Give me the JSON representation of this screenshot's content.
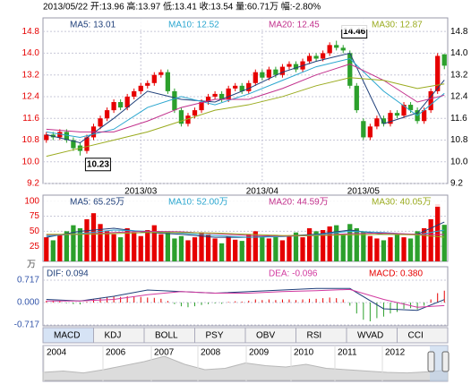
{
  "header": "2013/05/22 开:13.96 高:13.97 低:13.41 收:13.54 量:60.71万 幅:-2.80%",
  "chart_data": [
    {
      "type": "candlestick",
      "open": [
        10.8,
        11.0,
        10.9,
        11.1,
        10.8,
        10.6,
        10.4,
        10.9,
        11.3,
        11.6,
        11.9,
        12.2,
        12.0,
        12.4,
        12.6,
        12.8,
        12.9,
        13.2,
        13.3,
        12.6,
        11.9,
        11.4,
        11.7,
        11.9,
        12.2,
        12.4,
        12.5,
        12.3,
        12.7,
        12.8,
        12.6,
        12.9,
        13.3,
        13.1,
        13.4,
        13.2,
        13.5,
        13.6,
        13.4,
        13.7,
        13.9,
        13.8,
        14.0,
        14.3,
        14.2,
        14.0,
        12.8,
        11.5,
        10.9,
        11.3,
        11.6,
        11.4,
        11.8,
        11.7,
        12.1,
        11.9,
        11.5,
        11.9,
        12.6,
        13.96
      ],
      "high": [
        11.1,
        11.1,
        11.2,
        11.2,
        10.9,
        10.7,
        11.0,
        11.4,
        11.7,
        12.0,
        12.3,
        12.3,
        12.5,
        12.7,
        12.9,
        13.0,
        13.3,
        13.4,
        13.4,
        12.7,
        12.0,
        11.8,
        12.0,
        12.3,
        12.5,
        12.6,
        12.6,
        12.8,
        12.9,
        12.9,
        13.0,
        13.4,
        13.4,
        13.5,
        13.5,
        13.6,
        13.7,
        13.7,
        13.8,
        14.0,
        14.0,
        14.1,
        14.4,
        14.46,
        14.3,
        14.1,
        12.9,
        11.6,
        11.4,
        11.7,
        11.7,
        11.9,
        11.9,
        12.2,
        12.2,
        12.0,
        12.0,
        12.7,
        14.0,
        13.97
      ],
      "low": [
        10.7,
        10.8,
        10.8,
        10.7,
        10.4,
        10.23,
        10.3,
        10.8,
        11.2,
        11.5,
        11.8,
        11.9,
        11.9,
        12.3,
        12.5,
        12.7,
        12.8,
        13.1,
        12.5,
        11.8,
        11.3,
        11.3,
        11.6,
        11.8,
        12.1,
        12.3,
        12.2,
        12.2,
        12.6,
        12.5,
        12.5,
        12.8,
        13.0,
        13.0,
        13.1,
        13.1,
        13.4,
        13.3,
        13.3,
        13.6,
        13.7,
        13.7,
        13.9,
        14.1,
        14.0,
        12.7,
        11.8,
        10.8,
        10.8,
        11.2,
        11.3,
        11.3,
        11.6,
        11.6,
        11.8,
        11.4,
        11.4,
        11.8,
        12.5,
        13.41
      ],
      "close": [
        11.0,
        10.9,
        11.1,
        10.8,
        10.5,
        10.4,
        10.9,
        11.3,
        11.6,
        11.9,
        12.2,
        12.0,
        12.4,
        12.6,
        12.8,
        12.9,
        13.2,
        13.3,
        12.6,
        11.9,
        11.4,
        11.7,
        11.9,
        12.2,
        12.4,
        12.5,
        12.3,
        12.7,
        12.8,
        12.6,
        12.9,
        13.3,
        13.1,
        13.4,
        13.2,
        13.5,
        13.6,
        13.4,
        13.7,
        13.9,
        13.8,
        14.0,
        14.3,
        14.2,
        14.1,
        12.8,
        11.9,
        10.9,
        11.3,
        11.6,
        11.4,
        11.8,
        11.7,
        12.1,
        11.9,
        11.5,
        11.9,
        12.6,
        13.9,
        13.54
      ],
      "up_color": "#e60000",
      "down_color": "#2ca02c",
      "ylim": [
        9.2,
        15.3
      ],
      "yticks": [
        9.2,
        {
          "value": 10,
          "label": "10.0"
        },
        10.8,
        11.6,
        12.4,
        13.2,
        {
          "value": 14,
          "label": "14.0"
        },
        14.8
      ],
      "xticks": [
        {
          "value": 14,
          "label": "2013/03"
        },
        {
          "value": 32,
          "label": "2013/04"
        },
        {
          "value": 47,
          "label": "2013/05"
        }
      ],
      "grid": true,
      "ma_labels": [
        "MA5: 13.01",
        "MA10: 12.52",
        "MA20: 12.45",
        "MA30: 12.87"
      ],
      "series": [
        {
          "name": "MA5",
          "color": "#1f3f7a",
          "x": [
            0,
            5,
            10,
            15,
            20,
            25,
            30,
            35,
            40,
            45,
            50,
            55,
            59
          ],
          "values": [
            11.0,
            10.7,
            11.6,
            12.6,
            12.3,
            12.2,
            12.7,
            13.3,
            13.7,
            14.0,
            11.4,
            11.8,
            13.01
          ]
        },
        {
          "name": "MA10",
          "color": "#2aa6cf",
          "x": [
            0,
            5,
            10,
            15,
            20,
            25,
            30,
            35,
            40,
            45,
            50,
            55,
            59
          ],
          "values": [
            11.1,
            10.9,
            11.2,
            12.0,
            12.4,
            12.1,
            12.5,
            13.0,
            13.5,
            13.8,
            12.6,
            11.7,
            12.52
          ]
        },
        {
          "name": "MA20",
          "color": "#c2308c",
          "x": [
            0,
            5,
            10,
            15,
            20,
            25,
            30,
            35,
            40,
            45,
            50,
            55,
            59
          ],
          "values": [
            11.2,
            11.1,
            11.1,
            11.5,
            12.0,
            12.3,
            12.3,
            12.7,
            13.2,
            13.6,
            13.0,
            12.2,
            12.45
          ]
        },
        {
          "name": "MA30",
          "color": "#9aab1e",
          "x": [
            0,
            5,
            10,
            15,
            20,
            25,
            30,
            35,
            40,
            45,
            50,
            55,
            59
          ],
          "values": [
            10.2,
            10.5,
            10.8,
            11.1,
            11.5,
            11.9,
            12.1,
            12.4,
            12.8,
            13.1,
            13.0,
            12.7,
            12.87
          ]
        }
      ]
    },
    {
      "type": "bar",
      "values": [
        40,
        35,
        45,
        50,
        60,
        55,
        70,
        80,
        62,
        50,
        45,
        40,
        55,
        48,
        42,
        52,
        60,
        45,
        50,
        38,
        42,
        35,
        40,
        48,
        45,
        38,
        30,
        42,
        36,
        34,
        45,
        50,
        40,
        38,
        44,
        35,
        42,
        48,
        40,
        55,
        50,
        52,
        58,
        60,
        45,
        62,
        55,
        50,
        42,
        38,
        35,
        40,
        45,
        40,
        38,
        50,
        55,
        70,
        95,
        60.71
      ],
      "ylim": [
        0,
        110
      ],
      "yticks": [
        25,
        50,
        75,
        100
      ],
      "grid": true,
      "unit": "万",
      "ma_labels": [
        "MA5: 65.25万",
        "MA10: 52.00万",
        "MA20: 44.59万",
        "MA30: 40.05万"
      ],
      "series": [
        {
          "name": "MA5",
          "color": "#1f3f7a",
          "x": [
            0,
            5,
            10,
            15,
            20,
            25,
            30,
            35,
            40,
            45,
            50,
            55,
            59
          ],
          "values": [
            40,
            50,
            55,
            48,
            45,
            40,
            40,
            42,
            45,
            52,
            45,
            45,
            65.25
          ]
        },
        {
          "name": "MA10",
          "color": "#2aa6cf",
          "x": [
            0,
            5,
            10,
            15,
            20,
            25,
            30,
            35,
            40,
            45,
            50,
            55,
            59
          ],
          "values": [
            42,
            46,
            52,
            50,
            47,
            43,
            40,
            41,
            44,
            50,
            48,
            44,
            52
          ]
        },
        {
          "name": "MA20",
          "color": "#c2308c",
          "x": [
            0,
            5,
            10,
            15,
            20,
            25,
            30,
            35,
            40,
            45,
            50,
            55,
            59
          ],
          "values": [
            44,
            45,
            48,
            50,
            49,
            46,
            43,
            42,
            43,
            46,
            47,
            45,
            44.59
          ]
        },
        {
          "name": "MA30",
          "color": "#9aab1e",
          "x": [
            0,
            5,
            10,
            15,
            20,
            25,
            30,
            35,
            40,
            45,
            50,
            55,
            59
          ],
          "values": [
            45,
            45,
            46,
            48,
            48,
            47,
            45,
            43,
            43,
            44,
            45,
            44,
            40.05
          ]
        }
      ]
    },
    {
      "type": "macd",
      "values": [
        0.05,
        0.06,
        0.04,
        -0.02,
        -0.05,
        -0.06,
        0.02,
        0.1,
        0.15,
        0.18,
        0.2,
        0.18,
        0.2,
        0.19,
        0.18,
        0.16,
        0.15,
        0.12,
        0.05,
        -0.05,
        -0.12,
        -0.15,
        -0.12,
        -0.08,
        -0.05,
        -0.03,
        -0.04,
        0.02,
        0.04,
        0.03,
        0.06,
        0.1,
        0.08,
        0.1,
        0.08,
        0.1,
        0.1,
        0.08,
        0.1,
        0.12,
        0.12,
        0.14,
        0.16,
        0.14,
        0.1,
        -0.1,
        -0.35,
        -0.55,
        -0.6,
        -0.5,
        -0.45,
        -0.35,
        -0.3,
        -0.2,
        -0.18,
        -0.22,
        -0.1,
        0.1,
        0.3,
        0.38
      ],
      "ylim": [
        -0.745,
        1.146
      ],
      "yticks": [
        0.717,
        {
          "value": 0,
          "label": "0.000"
        },
        -0.717
      ],
      "ma_labels": [
        "DIF: 0.094",
        "DEA: -0.096",
        "MACD: 0.380"
      ],
      "series": [
        {
          "name": "DIF",
          "color": "#1f3f7a",
          "x": [
            0,
            5,
            10,
            15,
            20,
            25,
            30,
            35,
            40,
            45,
            50,
            55,
            59
          ],
          "values": [
            0.1,
            0.05,
            0.2,
            0.4,
            0.35,
            0.3,
            0.35,
            0.4,
            0.45,
            0.45,
            -0.2,
            -0.25,
            0.094
          ]
        },
        {
          "name": "DEA",
          "color": "#d23aa0",
          "x": [
            0,
            5,
            10,
            15,
            20,
            25,
            30,
            35,
            40,
            45,
            50,
            55,
            59
          ],
          "values": [
            0.05,
            0.05,
            0.1,
            0.25,
            0.35,
            0.3,
            0.3,
            0.35,
            0.38,
            0.42,
            0.1,
            -0.15,
            -0.096
          ]
        }
      ]
    }
  ],
  "tabs": [
    "MACD",
    "KDJ",
    "BOLL",
    "PSY",
    "OBV",
    "RSI",
    "WVAD",
    "CCI"
  ],
  "overview": {
    "years": [
      "2004",
      "2006",
      "2007",
      "2008",
      "2009",
      "2010",
      "2011",
      "2012"
    ],
    "values": [
      30,
      35,
      28,
      40,
      55,
      70,
      90,
      60,
      40,
      45,
      65,
      55,
      50,
      60,
      45,
      40,
      35,
      30,
      28,
      32,
      38
    ]
  }
}
